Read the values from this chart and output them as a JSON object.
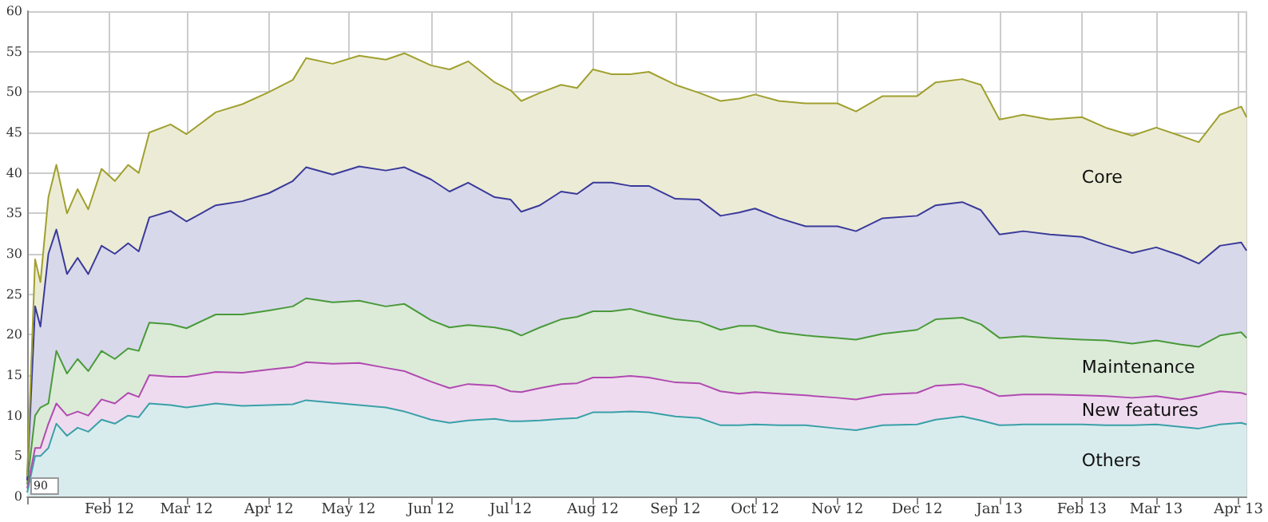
{
  "chart_data": {
    "type": "area",
    "stacked": true,
    "grid": true,
    "line_style": "solid",
    "marker": "none",
    "annotations": [
      "90"
    ],
    "x": [
      "2012-01-01",
      "2012-01-04",
      "2012-01-06",
      "2012-01-09",
      "2012-01-12",
      "2012-01-16",
      "2012-01-20",
      "2012-01-24",
      "2012-01-29",
      "2012-02-03",
      "2012-02-08",
      "2012-02-12",
      "2012-02-16",
      "2012-02-24",
      "2012-03-01",
      "2012-03-12",
      "2012-03-22",
      "2012-04-01",
      "2012-04-10",
      "2012-04-15",
      "2012-04-25",
      "2012-05-05",
      "2012-05-15",
      "2012-05-22",
      "2012-06-01",
      "2012-06-08",
      "2012-06-15",
      "2012-06-25",
      "2012-07-01",
      "2012-07-05",
      "2012-07-12",
      "2012-07-20",
      "2012-07-26",
      "2012-08-01",
      "2012-08-08",
      "2012-08-15",
      "2012-08-22",
      "2012-09-01",
      "2012-09-10",
      "2012-09-18",
      "2012-09-25",
      "2012-10-01",
      "2012-10-10",
      "2012-10-20",
      "2012-11-01",
      "2012-11-08",
      "2012-11-18",
      "2012-12-01",
      "2012-12-08",
      "2012-12-18",
      "2012-12-25",
      "2013-01-01",
      "2013-01-10",
      "2013-01-20",
      "2013-02-01",
      "2013-02-10",
      "2013-02-20",
      "2013-03-01",
      "2013-03-10",
      "2013-03-17",
      "2013-03-25",
      "2013-04-02",
      "2013-04-04"
    ],
    "series": [
      {
        "name": "Others",
        "color": "#3aa0a8",
        "values": [
          0.5,
          5,
          5,
          6,
          9,
          7.5,
          8.5,
          8,
          9.5,
          9,
          10,
          9.8,
          11.5,
          11.3,
          11,
          11.5,
          11.2,
          11.3,
          11.4,
          11.9,
          11.6,
          11.3,
          11,
          10.5,
          9.5,
          9.1,
          9.4,
          9.6,
          9.3,
          9.3,
          9.4,
          9.6,
          9.7,
          10.4,
          10.4,
          10.5,
          10.4,
          9.9,
          9.7,
          8.8,
          8.8,
          8.9,
          8.8,
          8.8,
          8.4,
          8.2,
          8.8,
          8.9,
          9.5,
          9.9,
          9.4,
          8.8,
          8.9,
          8.9,
          8.9,
          8.8,
          8.8,
          8.9,
          8.6,
          8.4,
          8.9,
          9.1,
          8.9
        ]
      },
      {
        "name": "New features",
        "color": "#b04ab0",
        "values": [
          0.5,
          1,
          1,
          3,
          2.5,
          2.5,
          2,
          2,
          2.5,
          2.5,
          2.8,
          2.5,
          3.5,
          3.5,
          3.8,
          3.9,
          4.1,
          4.4,
          4.6,
          4.7,
          4.8,
          5.2,
          4.9,
          5,
          4.7,
          4.3,
          4.5,
          4.1,
          3.7,
          3.6,
          4,
          4.3,
          4.3,
          4.3,
          4.3,
          4.4,
          4.3,
          4.2,
          4.3,
          4.2,
          3.9,
          4,
          3.9,
          3.7,
          3.8,
          3.8,
          3.8,
          3.9,
          4.2,
          4,
          4,
          3.6,
          3.7,
          3.7,
          3.6,
          3.6,
          3.4,
          3.5,
          3.4,
          4,
          4.1,
          3.7,
          3.7
        ]
      },
      {
        "name": "Maintenance",
        "color": "#4a9a3a",
        "values": [
          0.5,
          4,
          5,
          2.5,
          6.5,
          5.2,
          6.5,
          5.5,
          6,
          5.5,
          5.5,
          5.7,
          6.5,
          6.5,
          6,
          7.1,
          7.2,
          7.3,
          7.5,
          7.9,
          7.6,
          7.7,
          7.6,
          8.3,
          7.6,
          7.5,
          7.3,
          7.2,
          7.5,
          7,
          7.5,
          8,
          8.2,
          8.2,
          8.2,
          8.3,
          7.9,
          7.8,
          7.6,
          7.6,
          8.4,
          8.2,
          7.6,
          7.4,
          7.4,
          7.4,
          7.5,
          7.8,
          8.2,
          8.2,
          7.9,
          7.2,
          7.2,
          7,
          6.9,
          6.9,
          6.7,
          6.9,
          6.8,
          6.1,
          6.9,
          7.5,
          7
        ]
      },
      {
        "color": "#3a3a9a",
        "values": [
          0.5,
          13.5,
          10,
          18.5,
          15,
          12.3,
          12.5,
          12,
          13,
          13,
          13,
          12.3,
          13,
          14,
          13.2,
          13.5,
          14,
          14.5,
          15.5,
          16.2,
          15.8,
          16.6,
          16.8,
          16.9,
          17.4,
          16.8,
          17.6,
          16.1,
          16.2,
          15.3,
          15.1,
          15.8,
          15.2,
          15.9,
          15.9,
          15.2,
          15.8,
          14.9,
          15.1,
          14.1,
          14,
          14.5,
          14.1,
          13.5,
          13.8,
          13.4,
          14.3,
          14.1,
          14.1,
          14.3,
          14.1,
          12.8,
          13,
          12.8,
          12.7,
          11.8,
          11.2,
          11.5,
          11,
          10.3,
          11.1,
          11.1,
          10.8
        ]
      },
      {
        "name": "Core",
        "color": "#a0a030",
        "values": [
          0.5,
          5.8,
          5.5,
          7,
          8,
          7.5,
          8.5,
          8,
          9.5,
          9,
          9.7,
          9.7,
          10.5,
          10.7,
          10.8,
          11.5,
          12,
          12.5,
          12.5,
          13.5,
          13.7,
          13.7,
          13.7,
          14.1,
          14.1,
          15.1,
          15,
          14.2,
          13.5,
          13.7,
          13.9,
          13.2,
          13.1,
          14,
          13.4,
          13.8,
          14.1,
          14.1,
          13.2,
          14.2,
          14.1,
          14.1,
          14.5,
          15.2,
          15.2,
          14.8,
          15.1,
          14.8,
          15.2,
          15.2,
          15.5,
          14.2,
          14.4,
          14.2,
          14.8,
          14.5,
          14.5,
          14.8,
          14.8,
          15,
          16.2,
          16.8,
          16.5
        ]
      }
    ],
    "xlim": [
      "2012-01-01",
      "2013-04-04"
    ],
    "xticks": [
      {
        "value": "2012-02",
        "label": "Feb 12"
      },
      {
        "value": "2012-03",
        "label": "Mar 12"
      },
      {
        "value": "2012-04",
        "label": "Apr 12"
      },
      {
        "value": "2012-05",
        "label": "May 12"
      },
      {
        "value": "2012-06",
        "label": "Jun 12"
      },
      {
        "value": "2012-07",
        "label": "Jul 12"
      },
      {
        "value": "2012-08",
        "label": "Aug 12"
      },
      {
        "value": "2012-09",
        "label": "Sep 12"
      },
      {
        "value": "2012-10",
        "label": "Oct 12"
      },
      {
        "value": "2012-11",
        "label": "Nov 12"
      },
      {
        "value": "2012-12",
        "label": "Dec 12"
      },
      {
        "value": "2013-01",
        "label": "Jan 13"
      },
      {
        "value": "2013-02",
        "label": "Feb 13"
      },
      {
        "value": "2013-03",
        "label": "Mar 13"
      },
      {
        "value": "2013-04",
        "label": "Apr 13"
      }
    ],
    "ylim": [
      0,
      60
    ],
    "yticks": [
      0,
      5,
      10,
      15,
      20,
      25,
      30,
      35,
      40,
      45,
      50,
      55,
      60
    ]
  }
}
